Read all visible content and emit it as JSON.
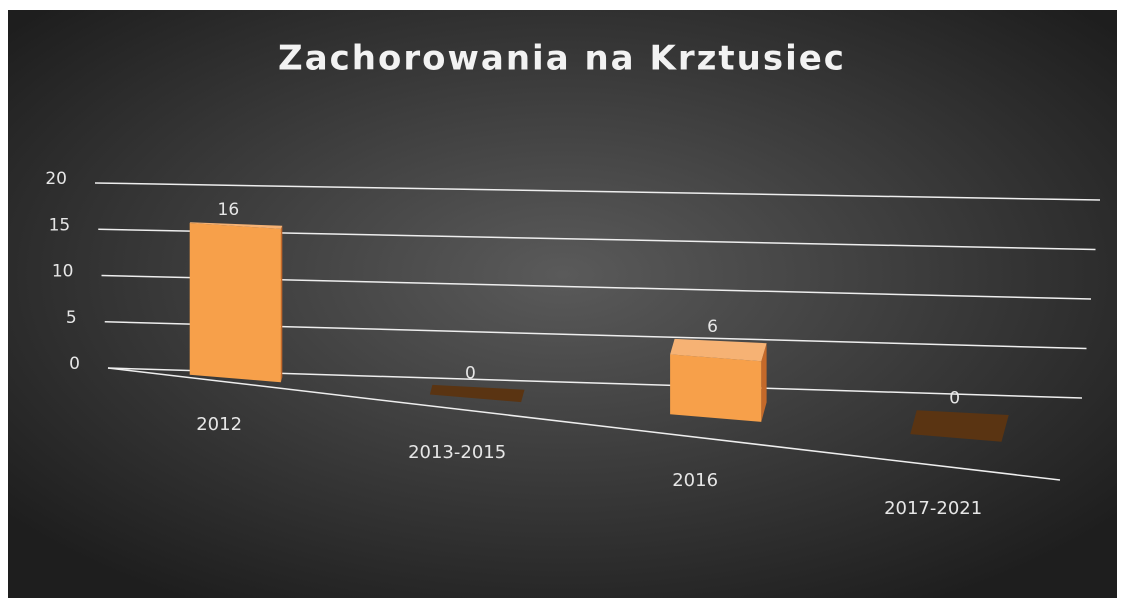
{
  "chart_data": {
    "type": "bar3d",
    "title": "Zachorowania na Krztusiec",
    "categories": [
      "2012",
      "2013-2015",
      "2016",
      "2017-2021"
    ],
    "values": [
      16,
      0,
      6,
      0
    ],
    "color": "#f7a04a",
    "ylim": [
      0,
      20
    ],
    "yticks": [
      0,
      5,
      10,
      15,
      20
    ],
    "grid": true
  }
}
